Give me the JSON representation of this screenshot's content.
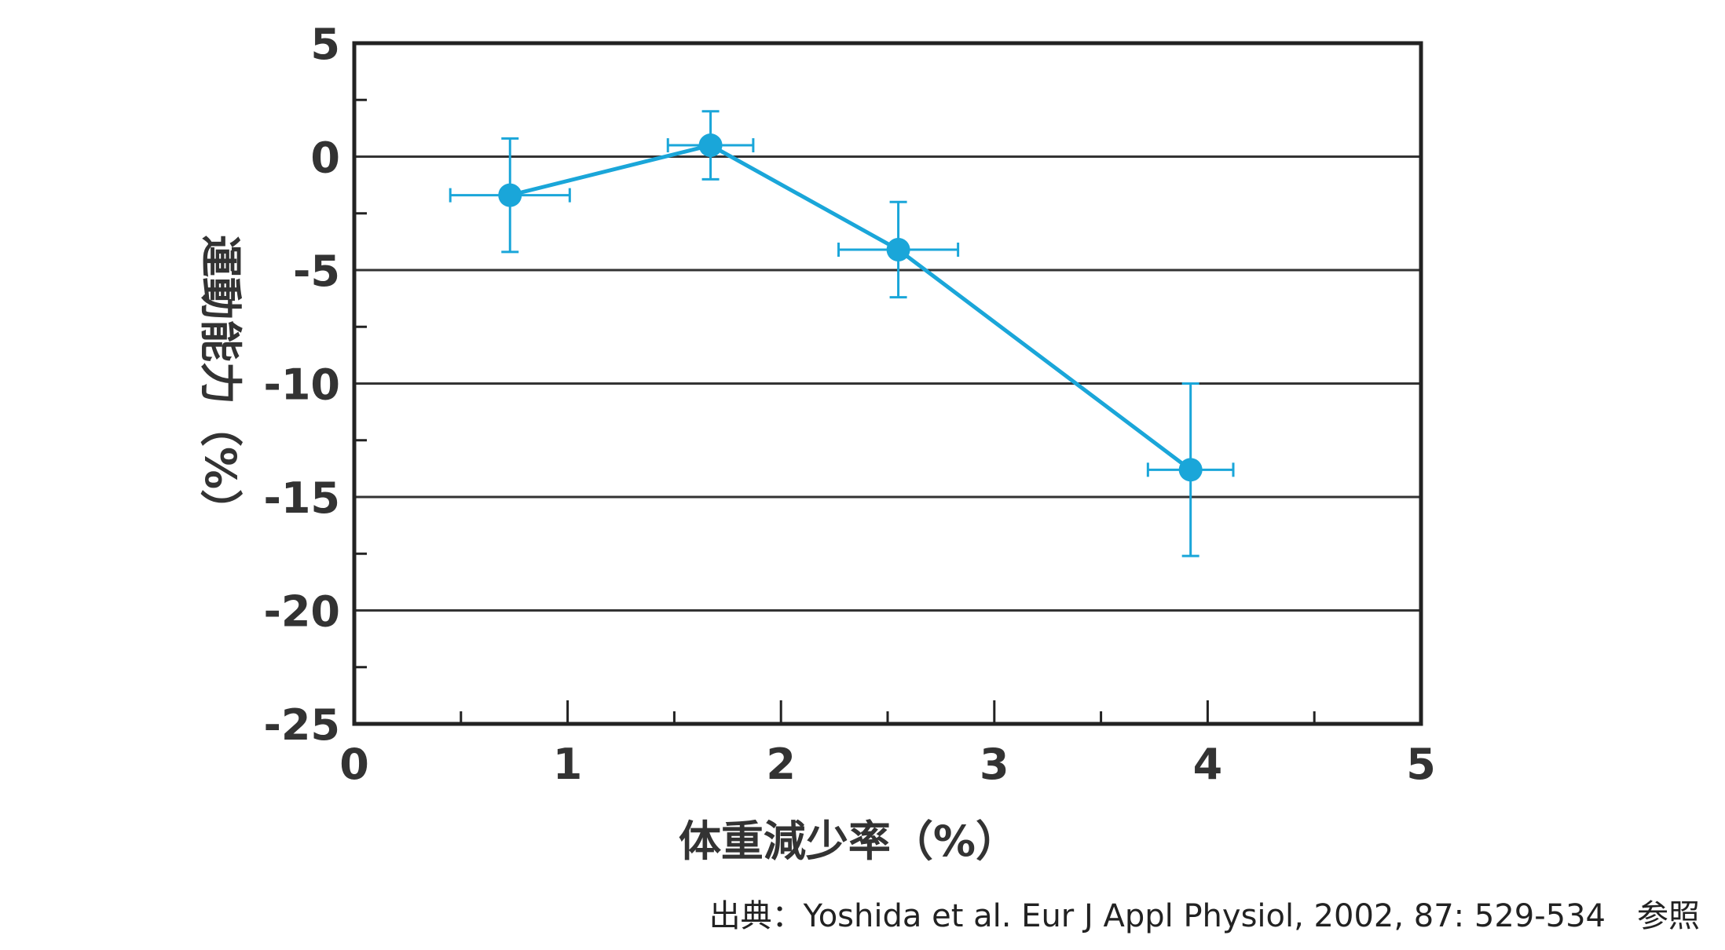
{
  "chart_data": {
    "type": "scatter",
    "xlabel": "体重減少率（%）",
    "ylabel": "運動能力（%）",
    "xlim": [
      0,
      5
    ],
    "ylim": [
      -25,
      5
    ],
    "x_ticks": [
      "0",
      "1",
      "2",
      "3",
      "4",
      "5"
    ],
    "y_ticks": [
      "5",
      "0",
      "-5",
      "-10",
      "-15",
      "-20",
      "-25"
    ],
    "grid": "horizontal",
    "connected": true,
    "series": [
      {
        "points": [
          {
            "x": 0.73,
            "y": -1.7,
            "x_err": 0.28,
            "y_err": 2.5
          },
          {
            "x": 1.67,
            "y": 0.5,
            "x_err": 0.2,
            "y_err": 1.5
          },
          {
            "x": 2.55,
            "y": -4.1,
            "x_err": 0.28,
            "y_err": 2.1
          },
          {
            "x": 3.92,
            "y": -13.8,
            "x_err": 0.2,
            "y_err": 3.8
          }
        ]
      }
    ]
  },
  "colors": {
    "series": "#1aa6d9",
    "axis": "#222222",
    "grid": "#333333"
  },
  "source": "出典：Yoshida et al. Eur J Appl Physiol, 2002, 87: 529-534　参照"
}
